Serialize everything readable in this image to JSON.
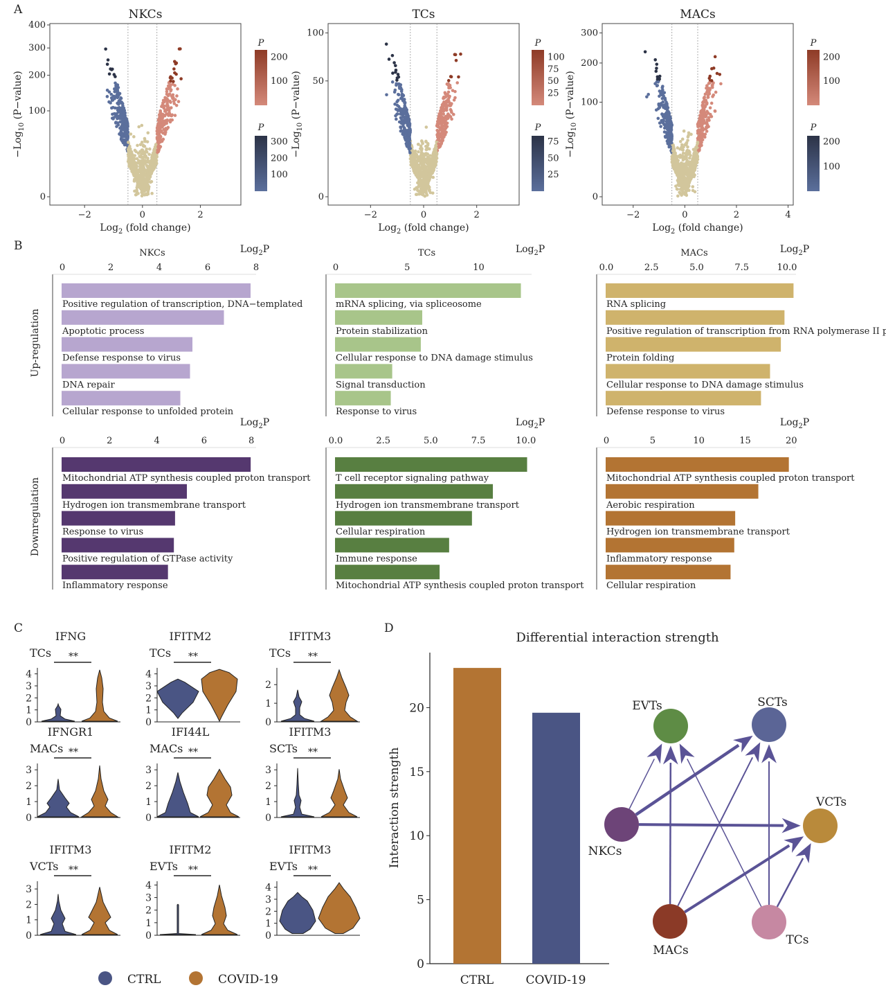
{
  "colors": {
    "up": "#8e3b26",
    "up_light": "#d4897a",
    "down": "#2c3347",
    "down_light": "#5b6f9c",
    "ns": "#d2c69c",
    "ctrl": "#4a5584",
    "covid": "#b37433",
    "nk_up": "#b7a6cf",
    "nk_dn": "#55386f",
    "tc_up": "#a8c58a",
    "tc_dn": "#587f41",
    "mac_up": "#cfb36c",
    "mac_dn": "#b37433",
    "arrow": "#5a5396"
  },
  "panelA": {
    "label": "A",
    "xlabel_pre": "Log",
    "xlabel_sub": "2",
    "xlabel_post": " (fold change)",
    "ylabel_pre": "−Log",
    "ylabel_sub": "10",
    "ylabel_post": " (P−value)",
    "legend_title": "P",
    "plots": [
      {
        "title": "NKCs",
        "xlim": [
          -3.2,
          3.4
        ],
        "xticks": [
          -2,
          0,
          2
        ],
        "yticks": [
          0,
          100,
          200,
          300,
          400
        ],
        "ymax": 400,
        "up_legend": [
          100,
          200
        ],
        "down_legend": [
          100,
          200,
          300
        ]
      },
      {
        "title": "TCs",
        "xlim": [
          -3.6,
          3.6
        ],
        "xticks": [
          -2,
          0,
          2
        ],
        "yticks": [
          0,
          50,
          100
        ],
        "ymax": 110,
        "up_legend": [
          25,
          50,
          75,
          100
        ],
        "down_legend": [
          25,
          50,
          75
        ]
      },
      {
        "title": "MACs",
        "xlim": [
          -3.2,
          4.2
        ],
        "xticks": [
          -2,
          0,
          2,
          4
        ],
        "yticks": [
          0,
          100,
          200,
          300
        ],
        "ymax": 330,
        "up_legend": [
          100,
          200
        ],
        "down_legend": [
          100,
          200
        ]
      }
    ]
  },
  "panelB": {
    "label": "B",
    "axis_pre": "Log",
    "axis_sub": "2",
    "axis_post": "P",
    "row_up": "Up-regulation",
    "row_down": "Downregulation",
    "charts": [
      {
        "cell": "NKCs",
        "dir": "up",
        "xmax": 8,
        "ticks": [
          "0",
          "2",
          "4",
          "6",
          "8"
        ],
        "terms": [
          "Positive regulation of transcription, DNA−templated",
          "Apoptotic process",
          "Defense response to virus",
          "DNA repair",
          "Cellular response to unfolded protein"
        ],
        "values": [
          7.8,
          6.7,
          5.4,
          5.3,
          4.9
        ]
      },
      {
        "cell": "TCs",
        "dir": "up",
        "xmax": 13.7,
        "ticks": [
          "0",
          "5",
          "10"
        ],
        "terms": [
          "mRNA splicing, via spliceosome",
          "Protein stabilization",
          "Cellular response to DNA damage stimulus",
          "Signal transduction",
          "Response to virus"
        ],
        "values": [
          13.0,
          6.1,
          6.0,
          4.0,
          3.9
        ]
      },
      {
        "cell": "MACs",
        "dir": "up",
        "xmax": 10.5,
        "ticks": [
          "0.0",
          "2.5",
          "5.0",
          "7.5",
          "10.0"
        ],
        "terms": [
          "RNA splicing",
          "Positive regulation of transcription from RNA polymerase II promoter",
          "Protein folding",
          "Cellular response to DNA damage stimulus",
          "Defense response to virus"
        ],
        "values": [
          10.4,
          9.9,
          9.7,
          9.1,
          8.6
        ]
      },
      {
        "cell": "",
        "dir": "down",
        "xmax": 8.2,
        "ticks": [
          "0",
          "2",
          "4",
          "6",
          "8"
        ],
        "terms": [
          "Mitochondrial ATP synthesis coupled proton transport",
          "Hydrogen ion transmembrane transport",
          "Response to virus",
          "Positive regulation of GTPase activity",
          "Inflammatory response"
        ],
        "values": [
          8.0,
          5.3,
          4.8,
          4.75,
          4.5
        ]
      },
      {
        "cell": "",
        "dir": "down",
        "xmax": 10.3,
        "ticks": [
          "0.0",
          "2.5",
          "5.0",
          "7.5",
          "10.0"
        ],
        "terms": [
          "T cell receptor signaling pathway",
          "Hydrogen ion transmembrane transport",
          "Cellular respiration",
          "Immune response",
          "Mitochondrial ATP synthesis coupled proton transport"
        ],
        "values": [
          10.1,
          8.3,
          7.2,
          6.0,
          5.5
        ]
      },
      {
        "cell": "",
        "dir": "down",
        "xmax": 20.5,
        "ticks": [
          "0",
          "5",
          "10",
          "15",
          "20"
        ],
        "terms": [
          "Mitochondrial ATP synthesis coupled proton transport",
          "Aerobic respiration",
          "Hydrogen ion transmembrane transport",
          "Inflammatory response",
          "Cellular respiration"
        ],
        "values": [
          19.8,
          16.5,
          14.0,
          13.9,
          13.5
        ]
      }
    ]
  },
  "panelC": {
    "label": "C",
    "sig": "**",
    "violins": [
      {
        "gene": "IFNG",
        "cell": "TCs",
        "ticks": [
          "0",
          "1",
          "2",
          "3",
          "4"
        ],
        "ymax": 4.5
      },
      {
        "gene": "IFITM2",
        "cell": "TCs",
        "ticks": [
          "0",
          "1",
          "2",
          "3",
          "4"
        ],
        "ymax": 4.5
      },
      {
        "gene": "IFITM3",
        "cell": "TCs",
        "ticks": [
          "0",
          "1",
          "2"
        ],
        "ymax": 2.9
      },
      {
        "gene": "IFNGR1",
        "cell": "MACs",
        "ticks": [
          "0",
          "1",
          "2",
          "3"
        ],
        "ymax": 3.4
      },
      {
        "gene": "IFI44L",
        "cell": "MACs",
        "ticks": [
          "0",
          "1",
          "2",
          "3"
        ],
        "ymax": 3.4
      },
      {
        "gene": "IFITM3",
        "cell": "SCTs",
        "ticks": [
          "0",
          "1",
          "2",
          "3"
        ],
        "ymax": 3.4
      },
      {
        "gene": "IFITM3",
        "cell": "VCTs",
        "ticks": [
          "0",
          "1",
          "2",
          "3"
        ],
        "ymax": 3.5
      },
      {
        "gene": "IFITM2",
        "cell": "EVTs",
        "ticks": [
          "0",
          "1",
          "2",
          "3",
          "4"
        ],
        "ymax": 4.3
      },
      {
        "gene": "IFITM3",
        "cell": "EVTs",
        "ticks": [
          "0",
          "1",
          "2",
          "3",
          "4"
        ],
        "ymax": 4.5
      }
    ],
    "legend": [
      "CTRL",
      "COVID-19"
    ]
  },
  "chart_data": [
    {
      "type": "bar",
      "title": "Differential interaction strength",
      "categories": [
        "CTRL",
        "COVID-19"
      ],
      "values": [
        23.1,
        19.6
      ],
      "xlabel": "",
      "ylabel": "Interaction strength",
      "ylim": [
        0,
        25
      ],
      "yticks": [
        0,
        5,
        10,
        15,
        20
      ]
    }
  ],
  "panelD": {
    "label": "D",
    "nodes": [
      {
        "id": "EVTs",
        "color": "#5e8c45"
      },
      {
        "id": "SCTs",
        "color": "#5b6596"
      },
      {
        "id": "VCTs",
        "color": "#b98a3b"
      },
      {
        "id": "NKCs",
        "color": "#6d4478"
      },
      {
        "id": "MACs",
        "color": "#8b3a27"
      },
      {
        "id": "TCs",
        "color": "#c688a2"
      }
    ],
    "edges": [
      [
        "NKCs",
        "EVTs",
        1.5
      ],
      [
        "NKCs",
        "SCTs",
        4.5
      ],
      [
        "NKCs",
        "VCTs",
        4
      ],
      [
        "MACs",
        "EVTs",
        2.5
      ],
      [
        "MACs",
        "SCTs",
        2
      ],
      [
        "MACs",
        "VCTs",
        4
      ],
      [
        "TCs",
        "EVTs",
        1.5
      ],
      [
        "TCs",
        "SCTs",
        2
      ],
      [
        "TCs",
        "VCTs",
        2.5
      ]
    ]
  }
}
